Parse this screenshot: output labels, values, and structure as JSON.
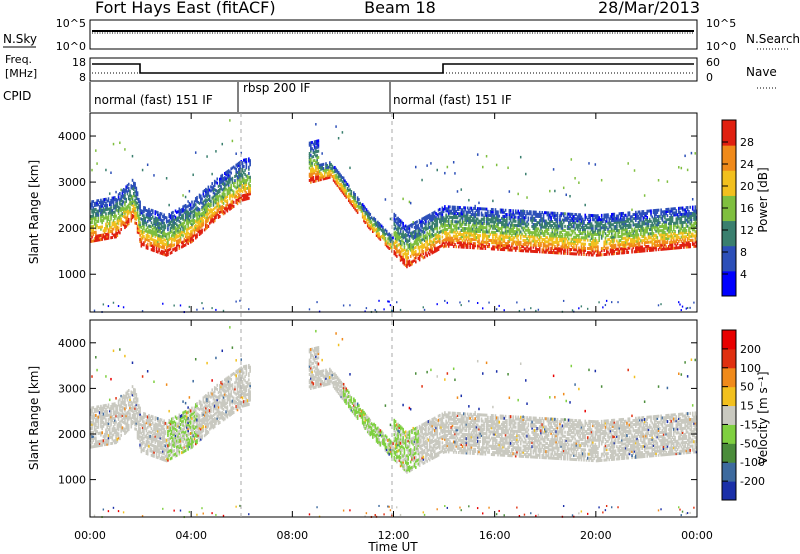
{
  "title": {
    "station": "Fort Hays East (fitACF)",
    "beam": "Beam 18",
    "date": "28/Mar/2013"
  },
  "header_panels": {
    "nsky_label": "N.Sky",
    "nsearch_label": "N.Search",
    "freq_label_line1": "Freq.",
    "freq_label_line2": "[MHz]",
    "nave_label": "Nave",
    "cpid_label": "CPID",
    "nsky_ticks": [
      "10^5",
      "10^0"
    ],
    "nsearch_ticks": [
      "10^5",
      "10^0"
    ],
    "freq_ticks": [
      "18",
      "8"
    ],
    "nave_ticks": [
      "60",
      "0"
    ]
  },
  "cpid_segments": [
    {
      "label": "normal (fast) 151 IF",
      "start_hour": 0,
      "end_hour": 6.1
    },
    {
      "label": "rbsp 200 IF",
      "start_hour": 6.1,
      "end_hour": 12.0
    },
    {
      "label": "normal (fast) 151 IF",
      "start_hour": 12.0,
      "end_hour": 24
    }
  ],
  "chart_data": [
    {
      "type": "heatmap",
      "panel": "power",
      "ylabel": "Slant Range [km]",
      "ylim": [
        180,
        4500
      ],
      "yticks": [
        "1000",
        "2000",
        "3000",
        "4000"
      ],
      "colorbar_label": "Power [dB]",
      "colorbar_ticks": [
        "4",
        "8",
        "12",
        "16",
        "20",
        "24",
        "28"
      ],
      "colorbar_colors": [
        "#0000ff",
        "#2c4fb8",
        "#3a7f6e",
        "#7fbf3f",
        "#f2c01e",
        "#f08a1a",
        "#e02010"
      ],
      "echo_band": [
        {
          "hour": 0.0,
          "range_km": 1700
        },
        {
          "hour": 1.0,
          "range_km": 1800
        },
        {
          "hour": 1.7,
          "range_km": 2200
        },
        {
          "hour": 2.0,
          "range_km": 1600
        },
        {
          "hour": 3.0,
          "range_km": 1400
        },
        {
          "hour": 4.0,
          "range_km": 1700
        },
        {
          "hour": 5.0,
          "range_km": 2200
        },
        {
          "hour": 6.0,
          "range_km": 2600
        },
        {
          "hour": 9.5,
          "range_km": 3100
        },
        {
          "hour": 11.0,
          "range_km": 2000
        },
        {
          "hour": 12.5,
          "range_km": 1150
        },
        {
          "hour": 14.0,
          "range_km": 1600
        },
        {
          "hour": 17.0,
          "range_km": 1500
        },
        {
          "hour": 20.0,
          "range_km": 1400
        },
        {
          "hour": 22.0,
          "range_km": 1500
        },
        {
          "hour": 24.0,
          "range_km": 1600
        }
      ]
    },
    {
      "type": "heatmap",
      "panel": "velocity",
      "ylabel": "Slant Range [km]",
      "ylim": [
        180,
        4500
      ],
      "yticks": [
        "1000",
        "2000",
        "3000",
        "4000"
      ],
      "colorbar_label": "Velocity [m s⁻¹]",
      "colorbar_ticks": [
        "200",
        "100",
        "50",
        "15",
        "-15",
        "-50",
        "-100",
        "-200"
      ],
      "colorbar_colors": [
        "#1a2fa8",
        "#3d6a9e",
        "#4a8c3a",
        "#7fd040",
        "#c9c9c0",
        "#f2c01e",
        "#f08a1a",
        "#e03010",
        "#e80000"
      ]
    }
  ],
  "xaxis": {
    "label": "Time UT",
    "ticks": [
      "00:00",
      "04:00",
      "08:00",
      "12:00",
      "16:00",
      "20:00",
      "00:00"
    ]
  }
}
